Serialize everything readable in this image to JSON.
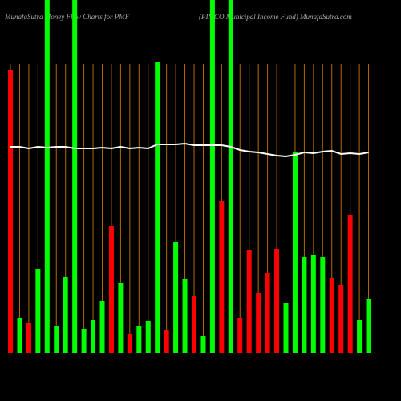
{
  "chart_data": {
    "type": "bar",
    "title": "MunafaSutra  Money Flow  Charts for PMF",
    "subtitle": "(PIMCO Municipal Income  Fund) MunafaSutra.com",
    "values": [
      353,
      44,
      37,
      104,
      440,
      33,
      94,
      440,
      30,
      41,
      65,
      158,
      87,
      23,
      33,
      40,
      363,
      29,
      138,
      92,
      71,
      21,
      440,
      189,
      440,
      44,
      128,
      75,
      99,
      130,
      62,
      250,
      119,
      122,
      120,
      93,
      85,
      172,
      41,
      67
    ],
    "colors": [
      "#ff0000",
      "#00ff00",
      "#ff0000",
      "#00ff00",
      "#00ff00",
      "#00ff00",
      "#00ff00",
      "#00ff00",
      "#00ff00",
      "#00ff00",
      "#00ff00",
      "#ff0000",
      "#00ff00",
      "#ff0000",
      "#00ff00",
      "#00ff00",
      "#00ff00",
      "#ff0000",
      "#00ff00",
      "#00ff00",
      "#ff0000",
      "#00ff00",
      "#00ff00",
      "#ff0000",
      "#00ff00",
      "#ff0000",
      "#ff0000",
      "#ff0000",
      "#ff0000",
      "#ff0000",
      "#00ff00",
      "#00ff00",
      "#00ff00",
      "#00ff00",
      "#00ff00",
      "#ff0000",
      "#ff0000",
      "#ff0000",
      "#00ff00",
      "#00ff00"
    ],
    "line_values": [
      257,
      257,
      255,
      257,
      256,
      257,
      257,
      255,
      255,
      255,
      256,
      255,
      257,
      255,
      256,
      255,
      260,
      260,
      260,
      261,
      259,
      259,
      259,
      259,
      257,
      253,
      251,
      250,
      248,
      246,
      245,
      247,
      250,
      249,
      251,
      252,
      248,
      249,
      248,
      250
    ],
    "line_color": "#ffffff",
    "gridline_color": "#b36b00",
    "ylim": [
      0,
      440
    ]
  }
}
